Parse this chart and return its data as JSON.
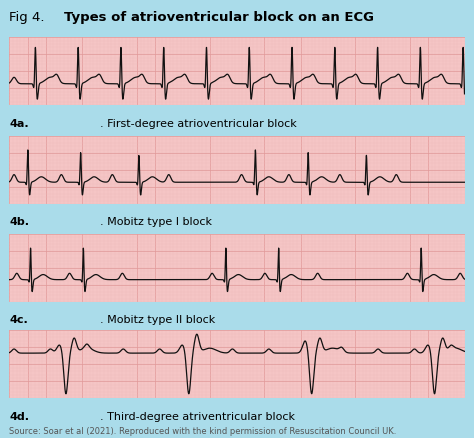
{
  "title_plain": "Fig 4. ",
  "title_bold": "Types of atrioventricular block on an ECG",
  "background_color": "#aadcea",
  "strip_bg_color": "#f5c5c5",
  "grid_major_color": "#e09898",
  "grid_minor_color": "#eebbbb",
  "ecg_color": "#111111",
  "labels": [
    [
      "4a",
      ". First-degree atrioventricular block"
    ],
    [
      "4b",
      ". Mobitz type I block"
    ],
    [
      "4c",
      ". Mobitz type II block"
    ],
    [
      "4d",
      ". Third-degree atriventricular block"
    ]
  ],
  "source_text": "Source: Soar et al (2021). Reproduced with the kind permission of Resuscitation Council UK.",
  "label_fontsize": 8.0,
  "title_fontsize": 9.5,
  "source_fontsize": 6.0
}
